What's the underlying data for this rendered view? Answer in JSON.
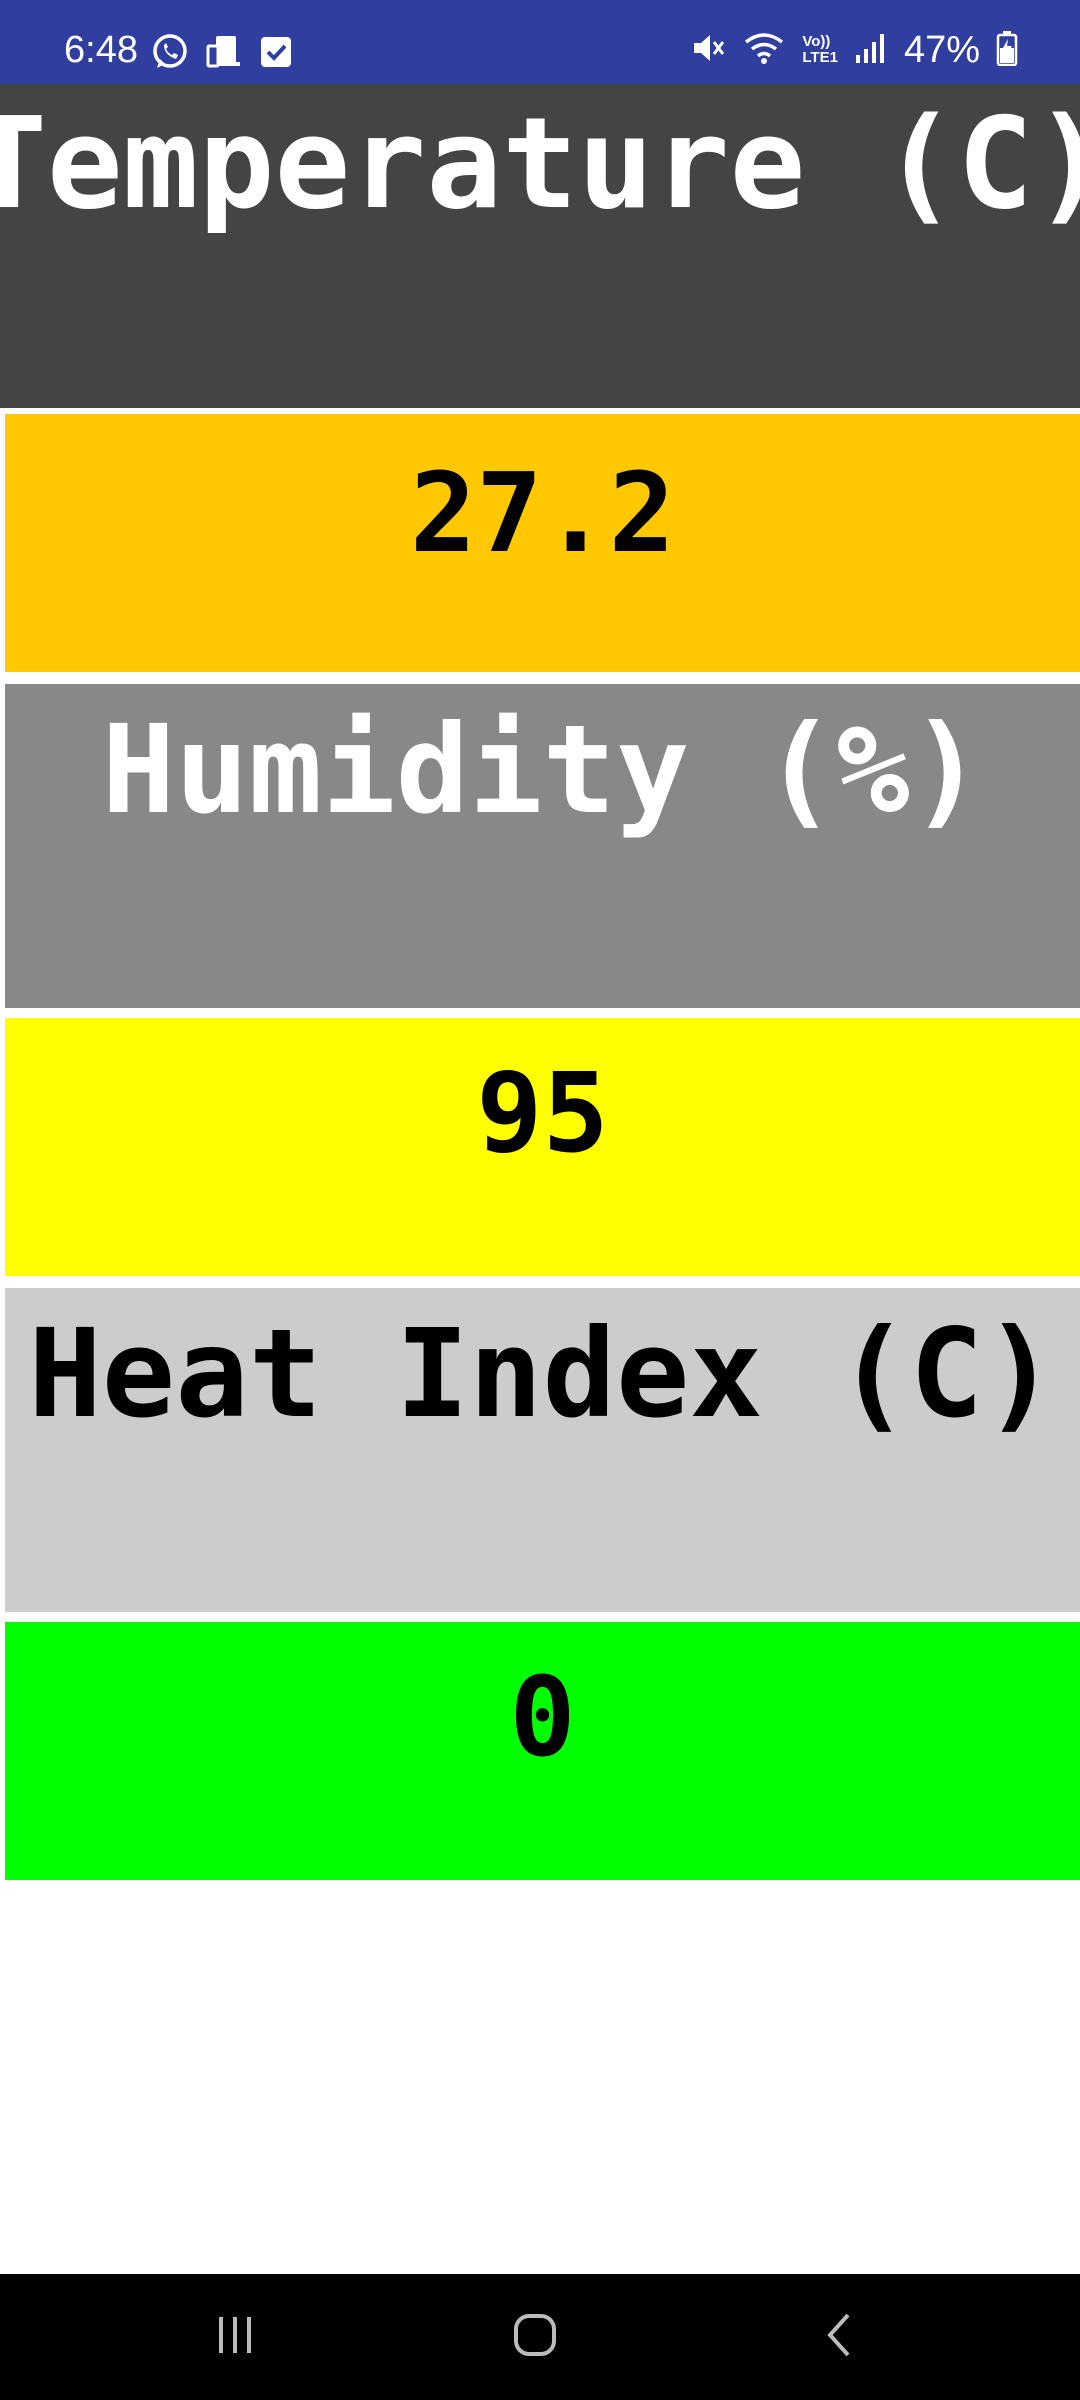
{
  "status_bar": {
    "time": "6:48",
    "left_icons": [
      "whatsapp-icon",
      "device-icon",
      "checkbox-icon"
    ],
    "right_icons": [
      "mute-icon",
      "wifi-icon",
      "volte-icon",
      "signal-icon",
      "battery-icon"
    ],
    "volte_label_top": "Vo))",
    "volte_label_bottom": "LTE1",
    "battery": "47%",
    "color": "#303f9f"
  },
  "tiles": {
    "temperature_label": "Temperature (C)",
    "temperature_value": "27.2",
    "humidity_label": "Humidity (%)",
    "humidity_value": "95",
    "heat_index_label": "Heat Index (C)",
    "heat_index_value": "0"
  },
  "colors": {
    "temperature_label_bg": "#444444",
    "temperature_value_bg": "#ffc800",
    "humidity_label_bg": "#888888",
    "humidity_value_bg": "#ffff00",
    "heat_index_label_bg": "#cccccc",
    "heat_index_value_bg": "#00ff00"
  },
  "nav_bar": {
    "buttons": [
      "recents-icon",
      "home-icon",
      "back-icon"
    ]
  }
}
